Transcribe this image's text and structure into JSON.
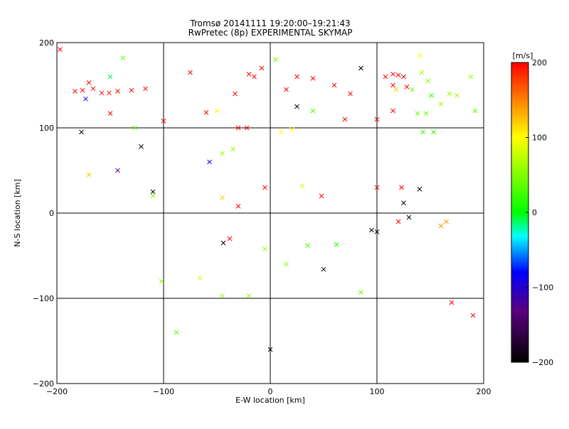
{
  "figure": {
    "title": "Tromsø 20141111 19:20:00–19:21:43",
    "subtitle": "RwPretec (8p) EXPERIMENTAL SKYMAP"
  },
  "colorbar": {
    "label": "[m/s]",
    "min": -200,
    "max": 200,
    "ticks": [
      200,
      100,
      0,
      -100,
      -200
    ],
    "colormap": [
      "#000000",
      "#5a0080",
      "#0000ff",
      "#00ffff",
      "#00ff00",
      "#ffff00",
      "#ff0000"
    ]
  },
  "chart_data": {
    "type": "scatter",
    "title": "Tromsø 20141111 19:20:00–19:21:43",
    "subtitle": "RwPretec (8p) EXPERIMENTAL SKYMAP",
    "xlabel": "E-W location [km]",
    "ylabel": "N-S location [km]",
    "xlim": [
      -200,
      200
    ],
    "ylim": [
      -200,
      200
    ],
    "xticks": [
      -200,
      -100,
      0,
      100,
      200
    ],
    "yticks": [
      -200,
      -100,
      0,
      100,
      200
    ],
    "grid": true,
    "colorbar_range": [
      -200,
      200
    ],
    "markers": [
      "small dot",
      "x"
    ],
    "series": [
      {
        "marker": "x",
        "points": [
          [
            -197,
            192,
            200
          ],
          [
            -183,
            143,
            200
          ],
          [
            -176,
            144,
            200
          ],
          [
            -170,
            153,
            200
          ],
          [
            -166,
            146,
            200
          ],
          [
            -158,
            141,
            200
          ],
          [
            -151,
            141,
            200
          ],
          [
            -143,
            143,
            200
          ],
          [
            -130,
            144,
            200
          ],
          [
            -117,
            146,
            200
          ],
          [
            -150,
            117,
            200
          ],
          [
            -173,
            134,
            -80
          ],
          [
            -150,
            160,
            -10
          ],
          [
            -138,
            182,
            40
          ],
          [
            -177,
            95,
            -200
          ],
          [
            -121,
            78,
            -200
          ],
          [
            -170,
            45,
            120
          ],
          [
            -143,
            50,
            -130
          ],
          [
            -110,
            25,
            -200
          ],
          [
            -110,
            20,
            60
          ],
          [
            -57,
            60,
            -100
          ],
          [
            -45,
            18,
            120
          ],
          [
            -38,
            -30,
            200
          ],
          [
            -44,
            -35,
            -200
          ],
          [
            -66,
            -76,
            80
          ],
          [
            -33,
            140,
            200
          ],
          [
            -22,
            100,
            200
          ],
          [
            -8,
            170,
            200
          ],
          [
            -20,
            163,
            200
          ],
          [
            5,
            180,
            50
          ],
          [
            15,
            145,
            200
          ],
          [
            25,
            160,
            200
          ],
          [
            40,
            158,
            200
          ],
          [
            10,
            95,
            100
          ],
          [
            20,
            98,
            100
          ],
          [
            25,
            125,
            -200
          ],
          [
            60,
            150,
            200
          ],
          [
            75,
            140,
            200
          ],
          [
            85,
            170,
            -200
          ],
          [
            70,
            110,
            200
          ],
          [
            100,
            110,
            200
          ],
          [
            115,
            120,
            200
          ],
          [
            115,
            150,
            200
          ],
          [
            108,
            160,
            200
          ],
          [
            115,
            163,
            200
          ],
          [
            125,
            160,
            200
          ],
          [
            128,
            148,
            200
          ],
          [
            142,
            165,
            60
          ],
          [
            148,
            155,
            60
          ],
          [
            133,
            145,
            40
          ],
          [
            151,
            138,
            20
          ],
          [
            138,
            117,
            40
          ],
          [
            146,
            117,
            40
          ],
          [
            143,
            95,
            20
          ],
          [
            153,
            95,
            20
          ],
          [
            140,
            185,
            100
          ],
          [
            120,
            162,
            200
          ],
          [
            118,
            145,
            120
          ],
          [
            123,
            30,
            200
          ],
          [
            125,
            12,
            -200
          ],
          [
            140,
            28,
            -200
          ],
          [
            130,
            -5,
            -200
          ],
          [
            100,
            -22,
            -200
          ],
          [
            95,
            -20,
            -200
          ],
          [
            120,
            -10,
            200
          ],
          [
            160,
            -15,
            140
          ],
          [
            165,
            -10,
            140
          ],
          [
            170,
            -105,
            200
          ],
          [
            190,
            -120,
            200
          ],
          [
            50,
            -66,
            -200
          ],
          [
            85,
            -93,
            40
          ],
          [
            0,
            -160,
            -200
          ],
          [
            35,
            -38,
            30
          ],
          [
            62,
            -37,
            10
          ],
          [
            15,
            -60,
            50
          ],
          [
            -5,
            -42,
            60
          ],
          [
            -20,
            -97,
            60
          ],
          [
            -45,
            -97,
            60
          ],
          [
            -88,
            -140,
            40
          ],
          [
            -102,
            -80,
            60
          ],
          [
            -30,
            100,
            200
          ],
          [
            -45,
            70,
            60
          ],
          [
            -35,
            75,
            60
          ],
          [
            -15,
            160,
            200
          ],
          [
            40,
            120,
            30
          ],
          [
            -75,
            165,
            200
          ],
          [
            -60,
            118,
            200
          ],
          [
            -50,
            120,
            100
          ],
          [
            -100,
            108,
            200
          ],
          [
            -127,
            100,
            40
          ],
          [
            175,
            138,
            60
          ],
          [
            168,
            140,
            60
          ],
          [
            160,
            128,
            60
          ],
          [
            192,
            120,
            40
          ],
          [
            188,
            160,
            60
          ],
          [
            30,
            32,
            80
          ],
          [
            100,
            30,
            200
          ],
          [
            -5,
            30,
            200
          ],
          [
            -30,
            8,
            200
          ],
          [
            48,
            20,
            200
          ]
        ]
      }
    ]
  }
}
